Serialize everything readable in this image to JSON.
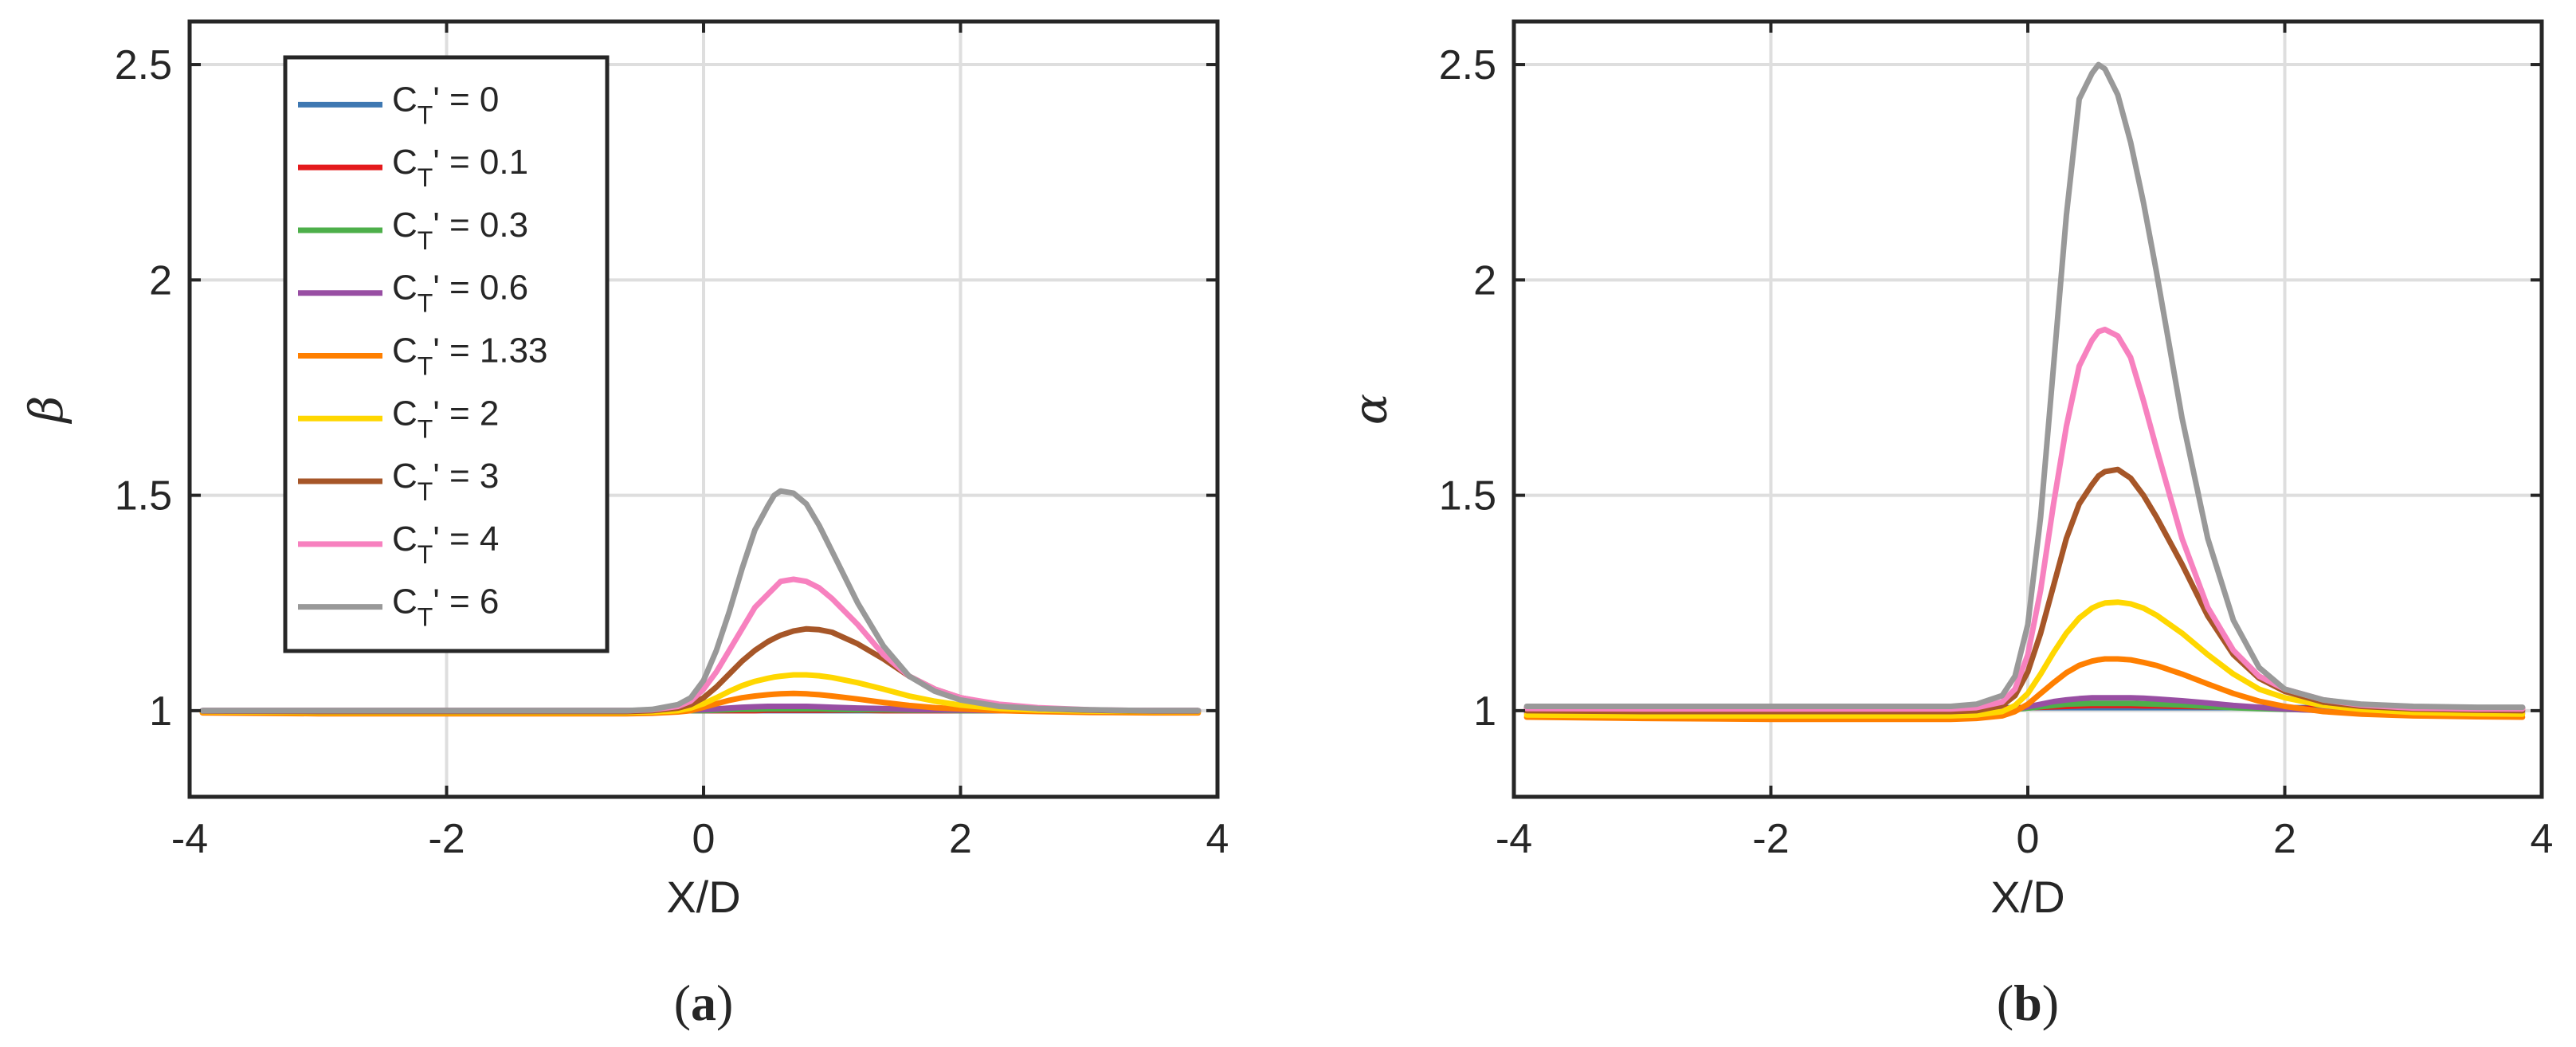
{
  "chart_data": [
    {
      "type": "line",
      "panel_label": {
        "open": "(",
        "letter": "a",
        "close": ")"
      },
      "xlabel": "X/D",
      "ylabel": "β",
      "xlim": [
        -4,
        4
      ],
      "ylim": [
        0.8,
        2.6
      ],
      "xticks": [
        -4,
        -2,
        0,
        2,
        4
      ],
      "xtick_labels": [
        "-4",
        "-2",
        "0",
        "2",
        "4"
      ],
      "yticks": [
        1,
        1.5,
        2,
        2.5
      ],
      "ytick_labels": [
        "1",
        "1.5",
        "2",
        "2.5"
      ],
      "grid": true,
      "legend": "top-left",
      "x": [
        -3.9,
        -3.0,
        -2.0,
        -1.0,
        -0.6,
        -0.4,
        -0.2,
        -0.1,
        0.0,
        0.1,
        0.2,
        0.3,
        0.4,
        0.5,
        0.55,
        0.6,
        0.7,
        0.8,
        0.9,
        1.0,
        1.2,
        1.4,
        1.6,
        1.8,
        2.0,
        2.3,
        2.6,
        3.0,
        3.5,
        3.85
      ],
      "series": [
        {
          "name": "C_T' = 0",
          "values": [
            1.0,
            1.0,
            1.0,
            1.0,
            1.0,
            1.0,
            1.0,
            1.0,
            1.0,
            1.0,
            1.0,
            1.0,
            1.0,
            1.0,
            1.0,
            1.0,
            1.0,
            1.0,
            1.0,
            1.0,
            1.0,
            1.0,
            1.0,
            1.0,
            1.0,
            1.0,
            1.0,
            1.0,
            1.0,
            1.0
          ]
        },
        {
          "name": "C_T' = 0.1",
          "values": [
            1.0,
            1.0,
            1.0,
            1.0,
            1.0,
            1.0,
            1.0,
            1.0,
            1.0,
            1.0,
            1.0,
            1.0,
            1.0,
            1.001,
            1.001,
            1.001,
            1.001,
            1.001,
            1.001,
            1.001,
            1.001,
            1.0,
            1.0,
            1.0,
            1.0,
            1.0,
            1.0,
            1.0,
            1.0,
            1.0
          ]
        },
        {
          "name": "C_T' = 0.3",
          "values": [
            1.0,
            1.0,
            1.0,
            1.0,
            1.0,
            1.0,
            1.0,
            1.0,
            1.0,
            1.001,
            1.002,
            1.003,
            1.003,
            1.004,
            1.004,
            1.004,
            1.004,
            1.004,
            1.004,
            1.003,
            1.002,
            1.002,
            1.001,
            1.001,
            1.0,
            1.0,
            1.0,
            1.0,
            1.0,
            1.0
          ]
        },
        {
          "name": "C_T' = 0.6",
          "values": [
            1.0,
            1.0,
            1.0,
            1.0,
            1.0,
            1.0,
            1.0,
            1.001,
            1.002,
            1.004,
            1.006,
            1.008,
            1.009,
            1.01,
            1.01,
            1.01,
            1.01,
            1.01,
            1.009,
            1.008,
            1.006,
            1.005,
            1.003,
            1.002,
            1.001,
            1.0,
            1.0,
            1.0,
            1.0,
            1.0
          ]
        },
        {
          "name": "C_T' = 1.33",
          "values": [
            0.995,
            0.993,
            0.993,
            0.993,
            0.993,
            0.994,
            0.997,
            1.0,
            1.008,
            1.016,
            1.024,
            1.03,
            1.034,
            1.037,
            1.038,
            1.039,
            1.04,
            1.039,
            1.037,
            1.034,
            1.027,
            1.019,
            1.012,
            1.007,
            1.004,
            1.0,
            0.998,
            0.996,
            0.995,
            0.995
          ]
        },
        {
          "name": "C_T' = 2",
          "values": [
            0.998,
            0.996,
            0.996,
            0.996,
            0.996,
            0.997,
            1.0,
            1.006,
            1.016,
            1.03,
            1.045,
            1.058,
            1.068,
            1.075,
            1.078,
            1.08,
            1.083,
            1.083,
            1.081,
            1.077,
            1.065,
            1.05,
            1.034,
            1.022,
            1.013,
            1.005,
            1.001,
            0.999,
            0.998,
            0.998
          ]
        },
        {
          "name": "C_T' = 3",
          "values": [
            0.999,
            0.998,
            0.998,
            0.998,
            0.998,
            1.0,
            1.006,
            1.014,
            1.03,
            1.055,
            1.085,
            1.115,
            1.14,
            1.16,
            1.168,
            1.175,
            1.185,
            1.19,
            1.188,
            1.182,
            1.155,
            1.12,
            1.08,
            1.05,
            1.03,
            1.013,
            1.005,
            1.001,
            0.999,
            0.999
          ]
        },
        {
          "name": "C_T' = 4",
          "values": [
            1.0,
            1.0,
            1.0,
            1.0,
            1.0,
            1.002,
            1.01,
            1.022,
            1.05,
            1.09,
            1.14,
            1.19,
            1.24,
            1.27,
            1.285,
            1.3,
            1.305,
            1.3,
            1.285,
            1.26,
            1.2,
            1.13,
            1.08,
            1.05,
            1.03,
            1.015,
            1.007,
            1.002,
            1.0,
            1.0
          ]
        },
        {
          "name": "C_T' = 6",
          "values": [
            1.0,
            1.0,
            1.0,
            1.0,
            1.0,
            1.003,
            1.014,
            1.03,
            1.07,
            1.14,
            1.23,
            1.33,
            1.42,
            1.475,
            1.5,
            1.51,
            1.505,
            1.48,
            1.43,
            1.37,
            1.25,
            1.15,
            1.08,
            1.045,
            1.025,
            1.01,
            1.005,
            1.002,
            1.0,
            1.0
          ]
        }
      ]
    },
    {
      "type": "line",
      "panel_label": {
        "open": "(",
        "letter": "b",
        "close": ")"
      },
      "xlabel": "X/D",
      "ylabel": "α",
      "xlim": [
        -4,
        4
      ],
      "ylim": [
        0.8,
        2.6
      ],
      "xticks": [
        -4,
        -2,
        0,
        2,
        4
      ],
      "xtick_labels": [
        "-4",
        "-2",
        "0",
        "2",
        "4"
      ],
      "yticks": [
        1,
        1.5,
        2,
        2.5
      ],
      "ytick_labels": [
        "1",
        "1.5",
        "2",
        "2.5"
      ],
      "grid": true,
      "x": [
        -3.9,
        -3.0,
        -2.0,
        -1.0,
        -0.6,
        -0.4,
        -0.2,
        -0.1,
        0.0,
        0.1,
        0.2,
        0.3,
        0.4,
        0.5,
        0.55,
        0.6,
        0.7,
        0.8,
        0.9,
        1.0,
        1.2,
        1.4,
        1.6,
        1.8,
        2.0,
        2.3,
        2.6,
        3.0,
        3.5,
        3.85
      ],
      "series": [
        {
          "name": "C_T' = 0",
          "values": [
            1.007,
            1.007,
            1.007,
            1.007,
            1.007,
            1.007,
            1.007,
            1.007,
            1.007,
            1.007,
            1.007,
            1.007,
            1.007,
            1.007,
            1.007,
            1.007,
            1.007,
            1.007,
            1.007,
            1.007,
            1.007,
            1.007,
            1.007,
            1.007,
            1.007,
            1.007,
            1.007,
            1.007,
            1.007,
            1.007
          ]
        },
        {
          "name": "C_T' = 0.1",
          "values": [
            1.005,
            1.005,
            1.005,
            1.005,
            1.005,
            1.005,
            1.005,
            1.006,
            1.007,
            1.008,
            1.009,
            1.01,
            1.011,
            1.012,
            1.012,
            1.012,
            1.012,
            1.012,
            1.011,
            1.011,
            1.01,
            1.009,
            1.008,
            1.007,
            1.006,
            1.005,
            1.005,
            1.005,
            1.005,
            1.005
          ]
        },
        {
          "name": "C_T' = 0.3",
          "values": [
            1.0,
            1.0,
            1.0,
            1.0,
            1.0,
            1.0,
            1.001,
            1.003,
            1.006,
            1.009,
            1.012,
            1.015,
            1.016,
            1.017,
            1.017,
            1.017,
            1.017,
            1.017,
            1.016,
            1.015,
            1.013,
            1.01,
            1.007,
            1.005,
            1.003,
            1.001,
            1.0,
            1.0,
            1.0,
            1.0
          ]
        },
        {
          "name": "C_T' = 0.6",
          "values": [
            0.995,
            0.995,
            0.995,
            0.995,
            0.995,
            0.996,
            0.999,
            1.003,
            1.009,
            1.015,
            1.021,
            1.025,
            1.028,
            1.03,
            1.03,
            1.03,
            1.03,
            1.03,
            1.029,
            1.027,
            1.023,
            1.018,
            1.012,
            1.008,
            1.004,
            1.0,
            0.998,
            0.996,
            0.995,
            0.995
          ]
        },
        {
          "name": "C_T' = 1.33",
          "values": [
            0.985,
            0.982,
            0.98,
            0.98,
            0.98,
            0.982,
            0.988,
            0.998,
            1.015,
            1.04,
            1.065,
            1.088,
            1.105,
            1.115,
            1.118,
            1.12,
            1.12,
            1.118,
            1.112,
            1.105,
            1.085,
            1.062,
            1.04,
            1.022,
            1.01,
            0.998,
            0.992,
            0.988,
            0.986,
            0.985
          ]
        },
        {
          "name": "C_T' = 2",
          "values": [
            0.99,
            0.988,
            0.988,
            0.988,
            0.988,
            0.99,
            0.998,
            1.012,
            1.04,
            1.085,
            1.135,
            1.18,
            1.215,
            1.238,
            1.245,
            1.25,
            1.252,
            1.248,
            1.238,
            1.222,
            1.18,
            1.13,
            1.085,
            1.05,
            1.03,
            1.012,
            1.003,
            0.996,
            0.993,
            0.992
          ]
        },
        {
          "name": "C_T' = 3",
          "values": [
            1.0,
            0.998,
            0.998,
            0.998,
            0.998,
            1.0,
            1.012,
            1.035,
            1.09,
            1.18,
            1.29,
            1.4,
            1.48,
            1.525,
            1.545,
            1.555,
            1.56,
            1.54,
            1.5,
            1.45,
            1.34,
            1.22,
            1.13,
            1.075,
            1.045,
            1.02,
            1.01,
            1.004,
            1.001,
            1.0
          ]
        },
        {
          "name": "C_T' = 4",
          "values": [
            1.005,
            1.004,
            1.004,
            1.004,
            1.004,
            1.007,
            1.02,
            1.05,
            1.13,
            1.28,
            1.48,
            1.66,
            1.8,
            1.86,
            1.88,
            1.885,
            1.87,
            1.82,
            1.72,
            1.61,
            1.4,
            1.24,
            1.14,
            1.08,
            1.05,
            1.025,
            1.013,
            1.006,
            1.004,
            1.004
          ]
        },
        {
          "name": "C_T' = 6",
          "values": [
            1.01,
            1.01,
            1.01,
            1.01,
            1.01,
            1.015,
            1.035,
            1.08,
            1.2,
            1.45,
            1.8,
            2.15,
            2.42,
            2.48,
            2.5,
            2.49,
            2.43,
            2.32,
            2.18,
            2.02,
            1.68,
            1.4,
            1.21,
            1.1,
            1.05,
            1.025,
            1.015,
            1.01,
            1.008,
            1.008
          ]
        }
      ]
    }
  ],
  "legend": {
    "entries": [
      {
        "base": "C",
        "sub": "T",
        "rest": "' = 0",
        "color": "#3e78b2"
      },
      {
        "base": "C",
        "sub": "T",
        "rest": "' = 0.1",
        "color": "#e41a1c"
      },
      {
        "base": "C",
        "sub": "T",
        "rest": "' = 0.3",
        "color": "#4daf4a"
      },
      {
        "base": "C",
        "sub": "T",
        "rest": "' = 0.6",
        "color": "#984ea3"
      },
      {
        "base": "C",
        "sub": "T",
        "rest": "' = 1.33",
        "color": "#ff7f00"
      },
      {
        "base": "C",
        "sub": "T",
        "rest": "' = 2",
        "color": "#ffd700"
      },
      {
        "base": "C",
        "sub": "T",
        "rest": "' = 3",
        "color": "#a65628"
      },
      {
        "base": "C",
        "sub": "T",
        "rest": "' = 4",
        "color": "#f781bf"
      },
      {
        "base": "C",
        "sub": "T",
        "rest": "' = 6",
        "color": "#999999"
      }
    ]
  },
  "colors": {
    "axis": "#262626",
    "grid": "#dedede",
    "background": "#ffffff"
  }
}
